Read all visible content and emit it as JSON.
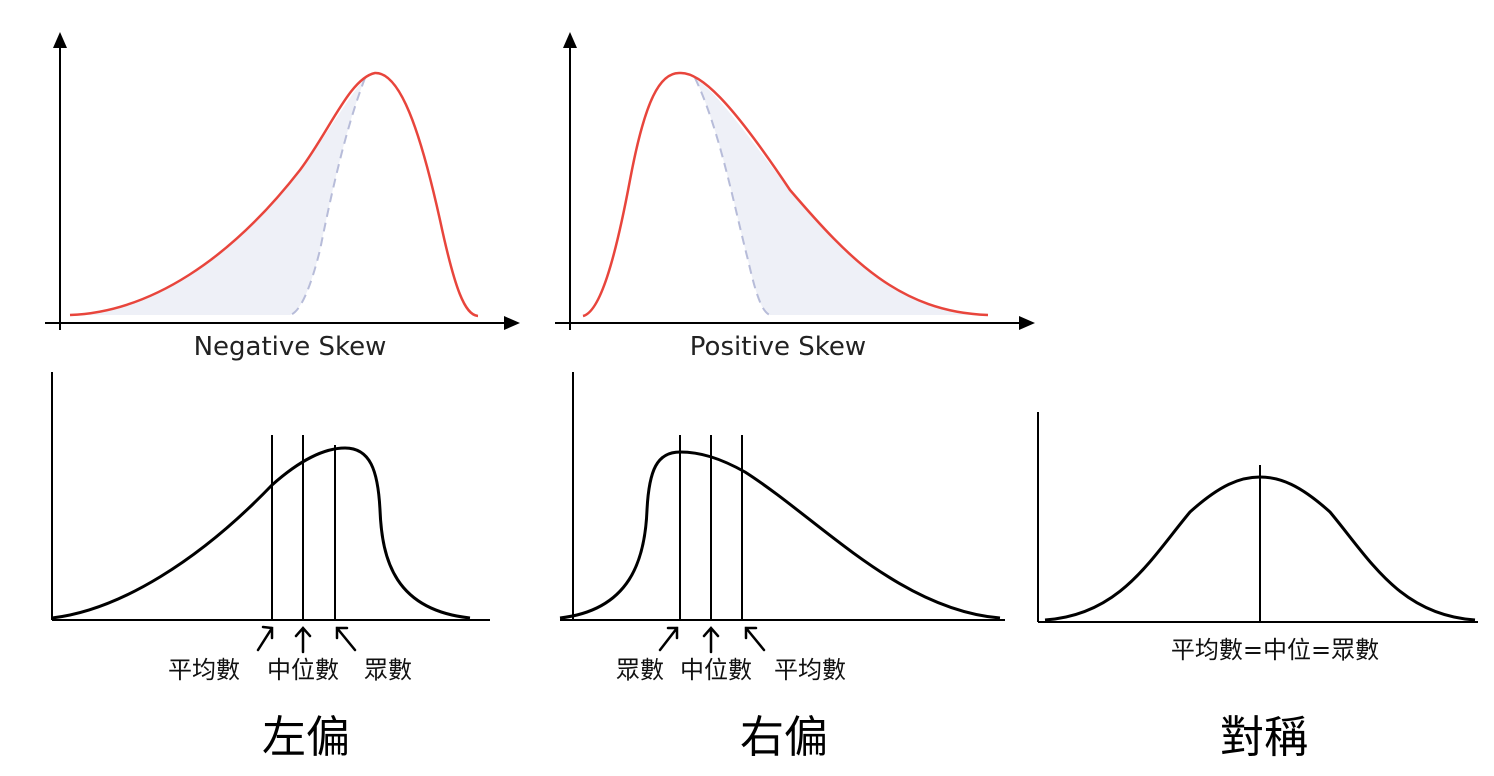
{
  "colors": {
    "curve_red": "#e8453c",
    "shade": "#eef0f7",
    "dash": "#b7bcd9",
    "axis": "#000000"
  },
  "top_left": {
    "caption": "Negative Skew"
  },
  "top_right": {
    "caption": "Positive Skew"
  },
  "bottom_left": {
    "labels": {
      "mean": "平均數",
      "median": "中位數",
      "mode": "眾數"
    },
    "title": "左偏"
  },
  "bottom_right": {
    "labels": {
      "mode": "眾數",
      "median": "中位數",
      "mean": "平均數"
    },
    "title": "右偏"
  },
  "bottom_sym": {
    "label": "平均數=中位=眾數",
    "title": "對稱"
  }
}
